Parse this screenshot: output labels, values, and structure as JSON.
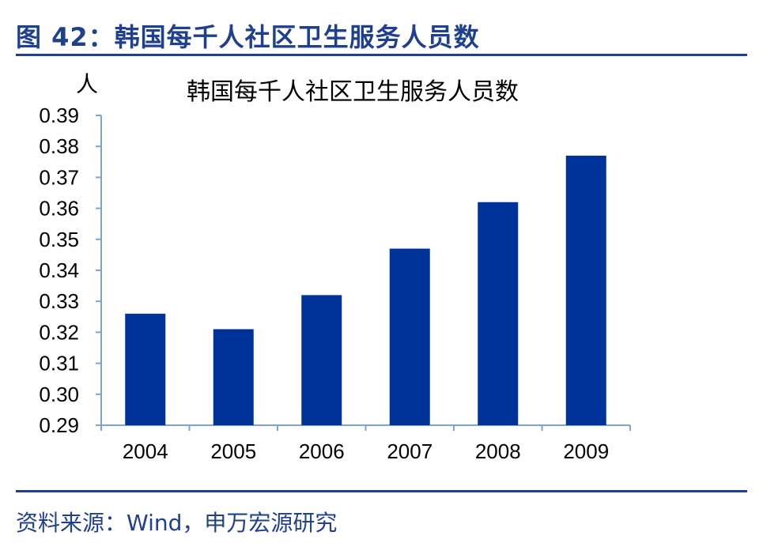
{
  "header": {
    "figure_title": "图 42：韩国每千人社区卫生服务人员数"
  },
  "footer": {
    "source": "资料来源：Wind，申万宏源研究"
  },
  "colors": {
    "accent": "#1f3f8f",
    "bar": "#003399",
    "axis": "#7fa3d6"
  },
  "chart_data": {
    "type": "bar",
    "title": "韩国每千人社区卫生服务人员数",
    "ylabel": "人",
    "xlabel": "",
    "categories": [
      "2004",
      "2005",
      "2006",
      "2007",
      "2008",
      "2009"
    ],
    "values": [
      0.326,
      0.321,
      0.332,
      0.347,
      0.362,
      0.377
    ],
    "ylim": [
      0.29,
      0.39
    ],
    "yticks": [
      "0.29",
      "0.30",
      "0.31",
      "0.32",
      "0.33",
      "0.34",
      "0.35",
      "0.36",
      "0.37",
      "0.38",
      "0.39"
    ],
    "grid": false,
    "legend": "none"
  }
}
